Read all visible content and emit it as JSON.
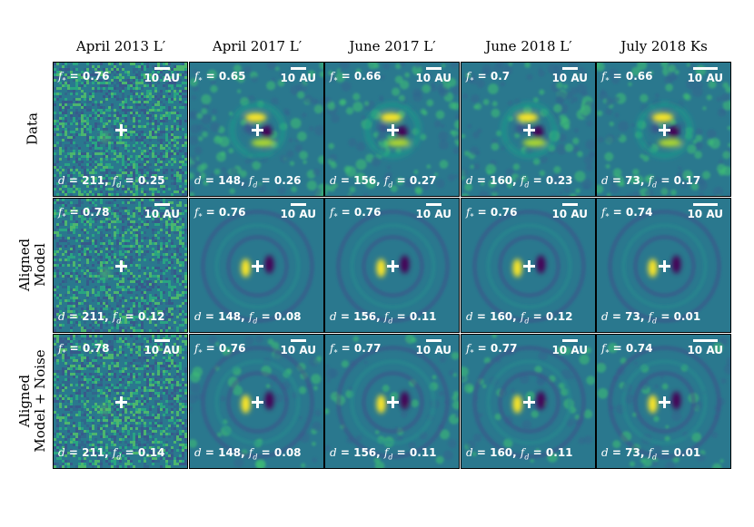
{
  "columns": [
    "April 2013 L′",
    "April 2017 L′",
    "June 2017 L′",
    "June 2018 L′",
    "July 2018 Ks"
  ],
  "rows": [
    {
      "label_lines": [
        "Data"
      ]
    },
    {
      "label_lines": [
        "Aligned",
        "Model"
      ]
    },
    {
      "label_lines": [
        "Aligned",
        "Model + Noise"
      ]
    }
  ],
  "scale_label": "10 AU",
  "panels": [
    [
      {
        "fstar": "0.76",
        "d": "211",
        "fd": "0.25"
      },
      {
        "fstar": "0.65",
        "d": "148",
        "fd": "0.26"
      },
      {
        "fstar": "0.66",
        "d": "156",
        "fd": "0.27"
      },
      {
        "fstar": "0.7",
        "d": "160",
        "fd": "0.23"
      },
      {
        "fstar": "0.66",
        "d": "73",
        "fd": "0.17"
      }
    ],
    [
      {
        "fstar": "0.78",
        "d": "211",
        "fd": "0.12"
      },
      {
        "fstar": "0.76",
        "d": "148",
        "fd": "0.08"
      },
      {
        "fstar": "0.76",
        "d": "156",
        "fd": "0.11"
      },
      {
        "fstar": "0.76",
        "d": "160",
        "fd": "0.12"
      },
      {
        "fstar": "0.74",
        "d": "73",
        "fd": "0.01"
      }
    ],
    [
      {
        "fstar": "0.78",
        "d": "211",
        "fd": "0.14"
      },
      {
        "fstar": "0.76",
        "d": "148",
        "fd": "0.08"
      },
      {
        "fstar": "0.77",
        "d": "156",
        "fd": "0.11"
      },
      {
        "fstar": "0.77",
        "d": "160",
        "fd": "0.11"
      },
      {
        "fstar": "0.74",
        "d": "73",
        "fd": "0.01"
      }
    ]
  ],
  "colors": {
    "background": "#2a788e",
    "bright": "#fde725",
    "dark": "#440154"
  }
}
